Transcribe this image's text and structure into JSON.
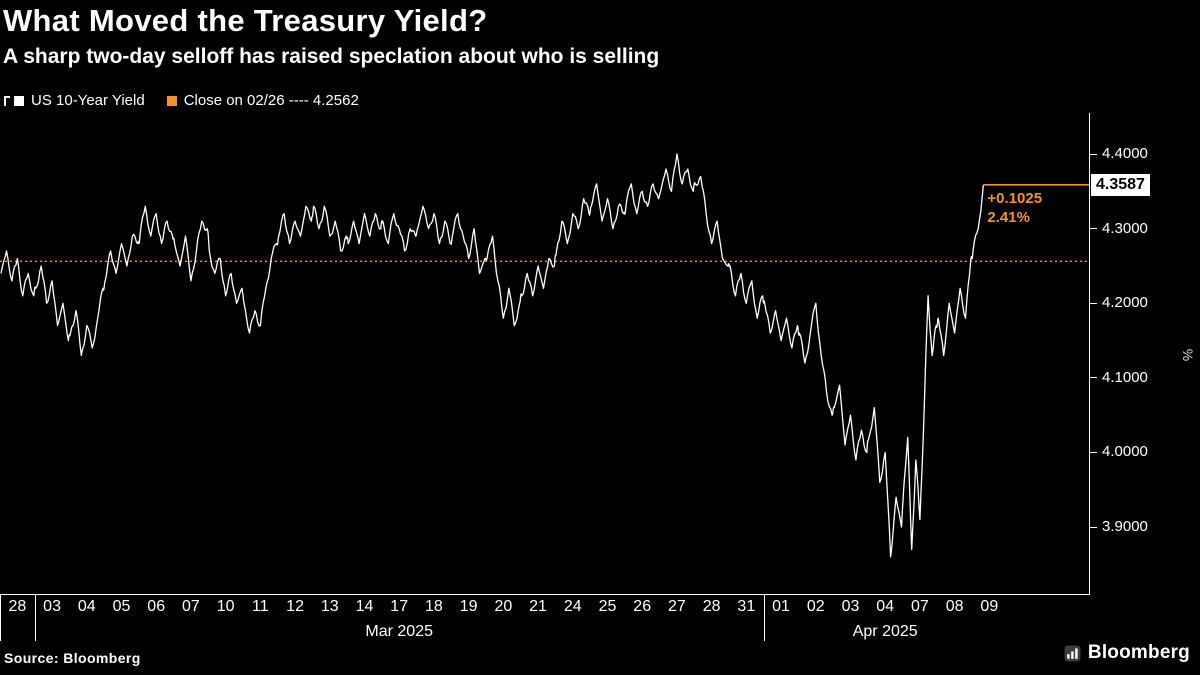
{
  "header": {
    "title": "What Moved the Treasury Yield?",
    "subtitle": "A sharp two-day selloff has raised speclation about who is selling"
  },
  "legend": {
    "series1_label": "US 10-Year Yield",
    "series2_label": "Close on 02/26 ---- 4.2562"
  },
  "axis": {
    "y_unit": "%"
  },
  "footer": {
    "source": "Source: Bloomberg",
    "brand": "Bloomberg"
  },
  "colors": {
    "accent_orange": "#f79322",
    "line_white": "#ffffff",
    "background": "#000000"
  },
  "chart_data": {
    "type": "line",
    "title": "US 10-Year Yield",
    "ylabel": "%",
    "ylim": [
      3.809,
      4.455
    ],
    "yticks": [
      3.9,
      4.0,
      4.1,
      4.2,
      4.3,
      4.4
    ],
    "ytick_labels": [
      "3.9000",
      "4.0000",
      "4.1000",
      "4.2000",
      "4.3000",
      "4.4000"
    ],
    "close_line": {
      "value": 4.2562,
      "date": "02/26",
      "style": "dotted"
    },
    "last": {
      "value": 4.3587,
      "label": "4.3587",
      "change_label": "+0.1025",
      "pct_label": "2.41%"
    },
    "total_slots": 31.4,
    "legend_position": "top-left",
    "grid": false,
    "days": [
      {
        "label": "28",
        "values": [
          4.24,
          4.27,
          4.23,
          4.26,
          4.21,
          4.24,
          4.21
        ]
      },
      {
        "label": "03",
        "values": [
          4.22,
          4.25,
          4.2,
          4.23,
          4.17,
          4.2,
          4.15
        ]
      },
      {
        "label": "04",
        "values": [
          4.16,
          4.19,
          4.13,
          4.17,
          4.14,
          4.18,
          4.22
        ]
      },
      {
        "label": "05",
        "values": [
          4.23,
          4.27,
          4.24,
          4.28,
          4.25,
          4.29,
          4.28
        ]
      },
      {
        "label": "06",
        "values": [
          4.29,
          4.33,
          4.29,
          4.32,
          4.28,
          4.31,
          4.29
        ]
      },
      {
        "label": "07",
        "values": [
          4.28,
          4.25,
          4.29,
          4.23,
          4.27,
          4.31,
          4.3
        ]
      },
      {
        "label": "10",
        "values": [
          4.27,
          4.24,
          4.26,
          4.21,
          4.24,
          4.2,
          4.22
        ]
      },
      {
        "label": "11",
        "values": [
          4.2,
          4.16,
          4.19,
          4.17,
          4.22,
          4.26,
          4.28
        ]
      },
      {
        "label": "12",
        "values": [
          4.29,
          4.32,
          4.28,
          4.31,
          4.29,
          4.33,
          4.31
        ]
      },
      {
        "label": "13",
        "values": [
          4.33,
          4.3,
          4.33,
          4.29,
          4.31,
          4.27,
          4.29
        ]
      },
      {
        "label": "14",
        "values": [
          4.28,
          4.31,
          4.28,
          4.32,
          4.29,
          4.32,
          4.3
        ]
      },
      {
        "label": "17",
        "values": [
          4.31,
          4.28,
          4.32,
          4.3,
          4.27,
          4.3,
          4.29
        ]
      },
      {
        "label": "18",
        "values": [
          4.3,
          4.33,
          4.3,
          4.32,
          4.28,
          4.31,
          4.28
        ]
      },
      {
        "label": "19",
        "values": [
          4.29,
          4.32,
          4.29,
          4.26,
          4.3,
          4.24,
          4.26
        ]
      },
      {
        "label": "20",
        "values": [
          4.26,
          4.29,
          4.23,
          4.18,
          4.22,
          4.17,
          4.2
        ]
      },
      {
        "label": "21",
        "values": [
          4.21,
          4.24,
          4.21,
          4.25,
          4.22,
          4.26,
          4.25
        ]
      },
      {
        "label": "24",
        "values": [
          4.27,
          4.31,
          4.28,
          4.32,
          4.3,
          4.34,
          4.32
        ]
      },
      {
        "label": "25",
        "values": [
          4.33,
          4.36,
          4.31,
          4.34,
          4.3,
          4.33,
          4.32
        ]
      },
      {
        "label": "26",
        "values": [
          4.33,
          4.36,
          4.32,
          4.35,
          4.33,
          4.36,
          4.34
        ]
      },
      {
        "label": "27",
        "values": [
          4.35,
          4.38,
          4.35,
          4.4,
          4.36,
          4.38,
          4.35
        ]
      },
      {
        "label": "28",
        "values": [
          4.36,
          4.37,
          4.32,
          4.28,
          4.31,
          4.26,
          4.25
        ]
      },
      {
        "label": "31",
        "values": [
          4.25,
          4.21,
          4.24,
          4.2,
          4.23,
          4.18,
          4.21
        ]
      },
      {
        "label": "01",
        "values": [
          4.2,
          4.16,
          4.19,
          4.15,
          4.18,
          4.14,
          4.17
        ]
      },
      {
        "label": "02",
        "values": [
          4.16,
          4.12,
          4.16,
          4.2,
          4.13,
          4.08,
          4.05
        ]
      },
      {
        "label": "03",
        "values": [
          4.06,
          4.09,
          4.01,
          4.05,
          3.99,
          4.03,
          4.0
        ]
      },
      {
        "label": "04",
        "values": [
          4.02,
          4.06,
          3.96,
          4.0,
          3.86,
          3.94,
          3.9
        ]
      },
      {
        "label": "07",
        "values": [
          3.95,
          4.02,
          3.87,
          3.99,
          3.91,
          4.05,
          4.21,
          4.13,
          4.17
        ]
      },
      {
        "label": "08",
        "values": [
          4.18,
          4.13,
          4.2,
          4.16,
          4.22,
          4.18,
          4.26
        ]
      },
      {
        "label": "09",
        "values": [
          4.27,
          4.3,
          4.3587
        ],
        "span": 0.3
      }
    ],
    "months": [
      {
        "label": "Mar 2025",
        "start": 1,
        "end": 22
      },
      {
        "label": "Apr 2025",
        "start": 22,
        "end": 29
      }
    ],
    "dividers": [
      0,
      1,
      22
    ]
  }
}
